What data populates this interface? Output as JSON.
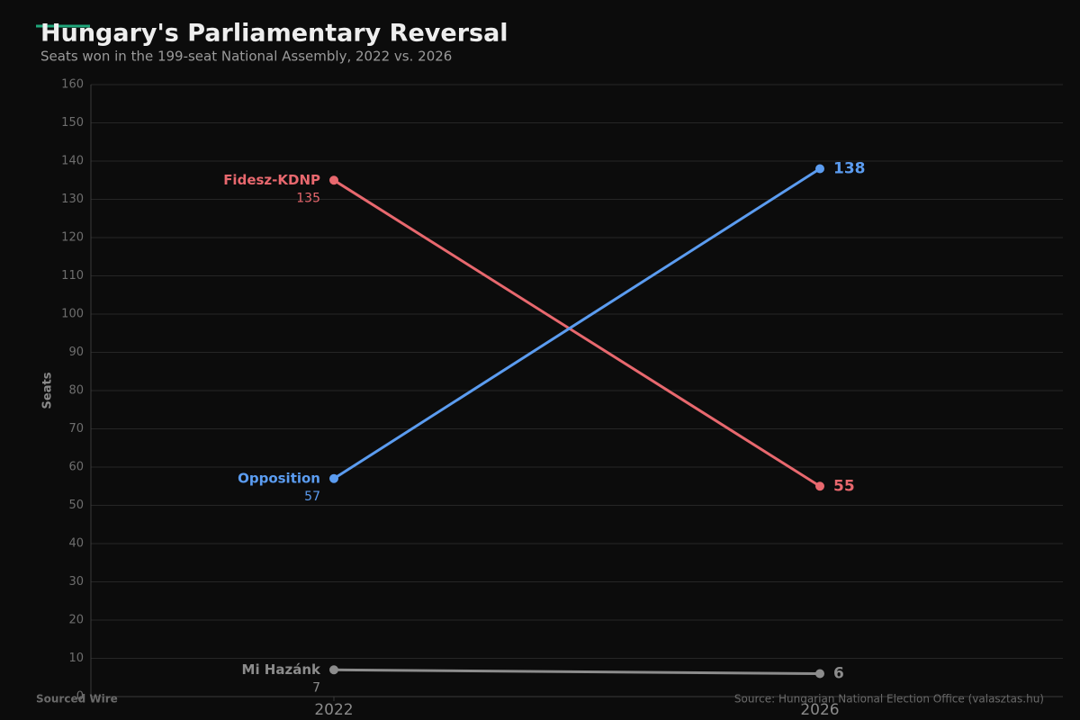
{
  "chart_data": {
    "type": "line",
    "title": "Hungary's Parliamentary Reversal",
    "subtitle": "Seats won in the 199-seat National Assembly, 2022 vs. 2026",
    "y_label": "Seats",
    "categories": [
      "2022",
      "2026"
    ],
    "series": [
      {
        "name": "Fidesz-KDNP",
        "color": "#e8686e",
        "values": [
          135,
          55
        ]
      },
      {
        "name": "Opposition",
        "color": "#5b9cf0",
        "values": [
          57,
          138
        ]
      },
      {
        "name": "Mi Hazánk",
        "color": "#8c8c8c",
        "values": [
          7,
          6
        ]
      }
    ],
    "ylim": [
      0,
      160
    ],
    "yticks": [
      0,
      10,
      20,
      30,
      40,
      50,
      60,
      70,
      80,
      90,
      100,
      110,
      120,
      130,
      140,
      150,
      160
    ],
    "grid": true,
    "footer_left": "Sourced Wire",
    "source": "Source: Hungarian National Election Office (valasztas.hu)"
  }
}
